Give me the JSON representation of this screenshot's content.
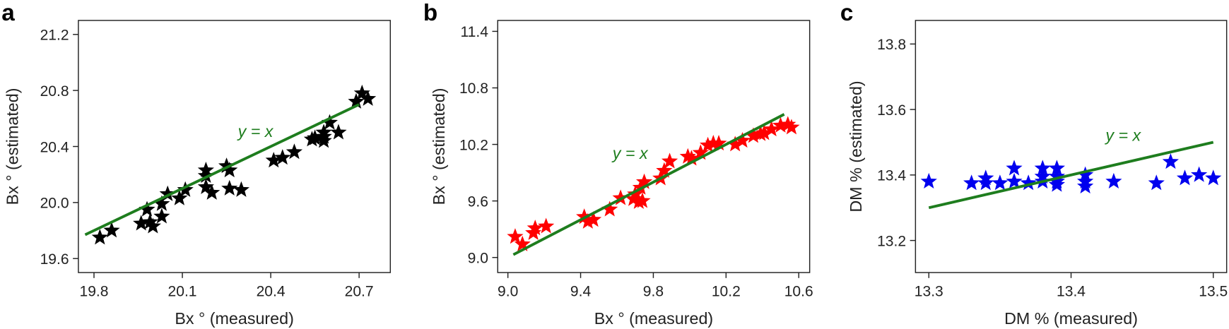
{
  "chart_data": [
    {
      "type": "scatter",
      "panel_label": "a",
      "xlabel": "Bx ° (measured)",
      "ylabel": "Bx ° (estimated)",
      "color": "#000000",
      "marker": "star",
      "x": [
        19.82,
        19.86,
        19.96,
        19.98,
        19.99,
        20.0,
        20.03,
        20.03,
        20.05,
        20.09,
        20.11,
        20.18,
        20.18,
        20.18,
        20.2,
        20.25,
        20.26,
        20.26,
        20.3,
        20.41,
        20.44,
        20.48,
        20.54,
        20.55,
        20.58,
        20.58,
        20.58,
        20.6,
        20.63,
        20.69,
        20.71,
        20.73
      ],
      "values": [
        19.75,
        19.8,
        19.85,
        19.95,
        19.86,
        19.83,
        19.9,
        19.99,
        20.06,
        20.03,
        20.09,
        20.19,
        20.23,
        20.11,
        20.07,
        20.26,
        20.23,
        20.1,
        20.09,
        20.3,
        20.32,
        20.36,
        20.45,
        20.46,
        20.47,
        20.44,
        20.5,
        20.57,
        20.5,
        20.72,
        20.78,
        20.74
      ],
      "reference_line": {
        "label": "y = x",
        "color": "#1e7d1e",
        "x": [
          19.77,
          20.7
        ]
      },
      "xlim": [
        19.747,
        20.806
      ],
      "ylim": [
        19.5,
        21.3
      ],
      "xticks": [
        19.8,
        20.1,
        20.4,
        20.7
      ],
      "yticks": [
        19.6,
        {
          "value": 20,
          "label": "20.0"
        },
        20.4,
        20.8,
        21.2
      ]
    },
    {
      "type": "scatter",
      "panel_label": "b",
      "xlabel": "Bx ° (measured)",
      "ylabel": "Bx ° (estimated)",
      "color": "#ff0000",
      "marker": "star",
      "x": [
        9.04,
        9.08,
        9.14,
        9.15,
        9.21,
        9.42,
        9.44,
        9.47,
        9.56,
        9.62,
        9.69,
        9.7,
        9.72,
        9.73,
        9.74,
        9.75,
        9.84,
        9.86,
        9.89,
        9.99,
        10.01,
        10.06,
        10.1,
        10.13,
        10.16,
        10.25,
        10.29,
        10.35,
        10.39,
        10.41,
        10.45,
        10.5,
        10.54,
        10.56
      ],
      "values": [
        9.22,
        9.14,
        9.26,
        9.31,
        9.33,
        9.43,
        9.38,
        9.4,
        9.51,
        9.63,
        9.62,
        9.67,
        9.59,
        9.74,
        9.6,
        9.8,
        9.84,
        9.92,
        10.02,
        10.07,
        10.05,
        10.11,
        10.19,
        10.21,
        10.21,
        10.2,
        10.24,
        10.29,
        10.31,
        10.32,
        10.36,
        10.4,
        10.41,
        10.38
      ],
      "reference_line": {
        "label": "y = x",
        "color": "#1e7d1e",
        "x": [
          9.03,
          10.52
        ]
      },
      "xlim": [
        8.944,
        10.66
      ],
      "ylim": [
        8.84,
        11.516
      ],
      "xticks": [
        {
          "value": 9,
          "label": "9.0"
        },
        9.4,
        9.8,
        10.2,
        10.6
      ],
      "yticks": [
        {
          "value": 9,
          "label": "9.0"
        },
        9.6,
        10.2,
        10.8,
        11.4
      ]
    },
    {
      "type": "scatter",
      "panel_label": "c",
      "xlabel": "DM % (measured)",
      "ylabel": "DM % (estimated)",
      "color": "#0000ee",
      "marker": "star",
      "x": [
        13.3,
        13.33,
        13.34,
        13.34,
        13.35,
        13.36,
        13.36,
        13.37,
        13.38,
        13.38,
        13.38,
        13.39,
        13.39,
        13.39,
        13.39,
        13.41,
        13.41,
        13.41,
        13.43,
        13.46,
        13.47,
        13.48,
        13.49,
        13.5
      ],
      "values": [
        13.38,
        13.375,
        13.39,
        13.375,
        13.375,
        13.42,
        13.38,
        13.375,
        13.42,
        13.395,
        13.38,
        13.38,
        13.42,
        13.395,
        13.37,
        13.4,
        13.38,
        13.365,
        13.38,
        13.375,
        13.44,
        13.39,
        13.4,
        13.39
      ],
      "reference_line": {
        "label": "y = x",
        "color": "#1e7d1e",
        "x": [
          13.3,
          13.5
        ]
      },
      "xlim": [
        13.2906,
        13.5094
      ],
      "ylim": [
        13.102,
        13.872
      ],
      "xticks": [
        13.3,
        13.4,
        13.5
      ],
      "yticks": [
        13.2,
        13.4,
        13.6,
        13.8
      ]
    }
  ]
}
